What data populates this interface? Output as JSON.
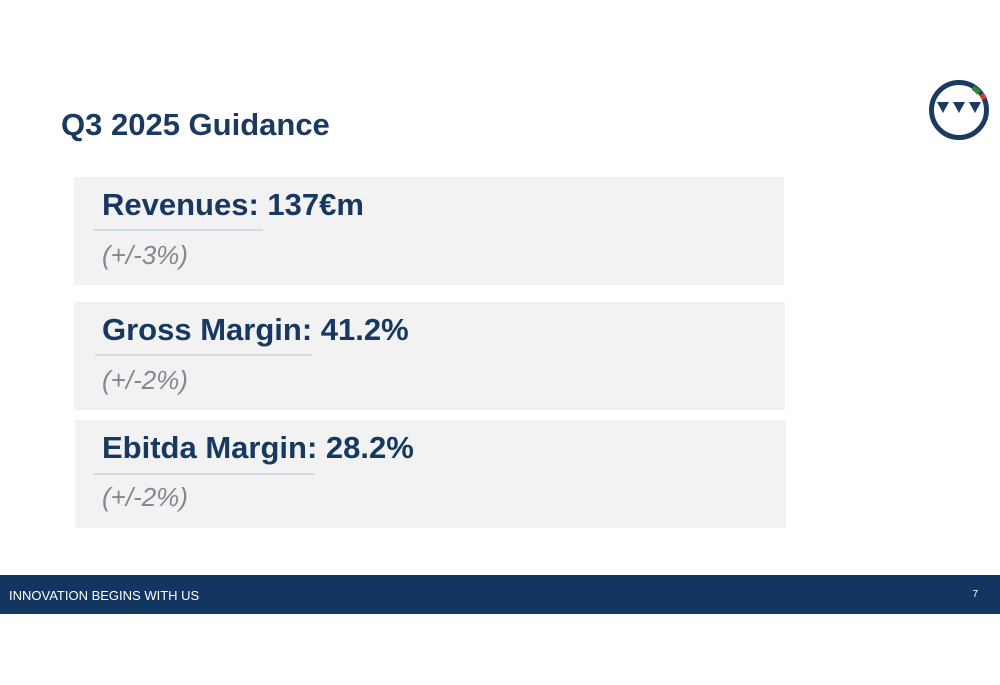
{
  "slide": {
    "title": "Q3 2025 Guidance",
    "logo": {
      "icon": "company-logo-icon",
      "ring_color": "#1a3a62",
      "accent_colors": [
        "#2e8b3e",
        "#d63a2a"
      ]
    }
  },
  "guidance": [
    {
      "label": "Revenues: 137€m",
      "range": "(+/-3%)"
    },
    {
      "label": "Gross Margin: 41.2%",
      "range": "(+/-2%)"
    },
    {
      "label": "Ebitda Margin: 28.2%",
      "range": "(+/-2%)"
    }
  ],
  "colors": {
    "title": "#1a3a62",
    "card_background": "#f2f2f2",
    "range_text": "#7f8893",
    "footer_background": "#133660"
  },
  "footer": {
    "tagline": "INNOVATION BEGINS WITH US",
    "page_number": "7"
  }
}
